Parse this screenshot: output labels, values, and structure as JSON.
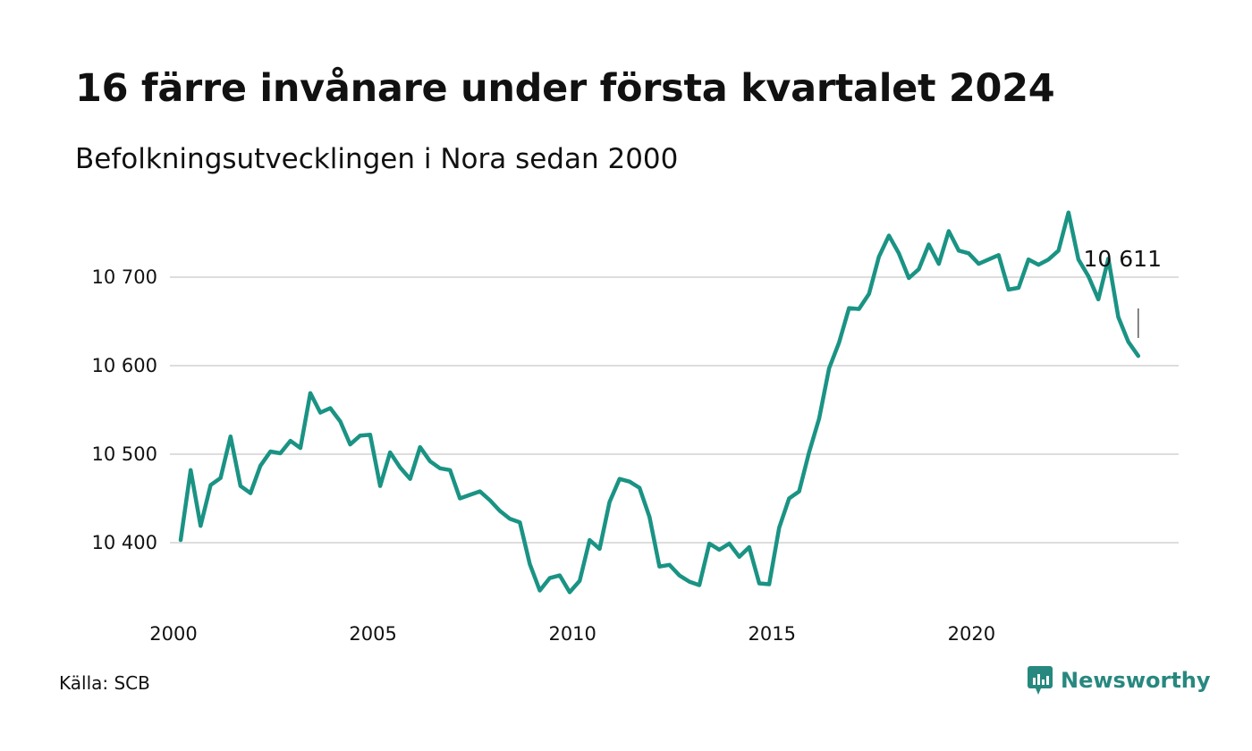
{
  "title": "16 färre invånare under första kvartalet 2024",
  "subtitle": "Befolkningsutvecklingen i Nora sedan 2000",
  "source": "Källa: SCB",
  "brand": {
    "name": "Newsworthy",
    "icon": "newsworthy-logo-icon",
    "color": "#27887f"
  },
  "colors": {
    "line": "#1a9384",
    "grid": "#dddddd"
  },
  "chart_data": {
    "type": "line",
    "title": "16 färre invånare under första kvartalet 2024",
    "subtitle": "Befolkningsutvecklingen i Nora sedan 2000",
    "xlabel": "",
    "ylabel": "",
    "xlim": [
      2000.0,
      2024.25
    ],
    "ylim": [
      10330,
      10780
    ],
    "grid": "horizontal",
    "x_ticks": [
      2000,
      2005,
      2010,
      2015,
      2020
    ],
    "y_ticks": [
      10400,
      10500,
      10600,
      10700
    ],
    "y_tick_labels": [
      "10 400",
      "10 500",
      "10 600",
      "10 700"
    ],
    "x_tick_labels": [
      "2000",
      "2005",
      "2010",
      "2015",
      "2020"
    ],
    "end_label": "10 611",
    "series": [
      {
        "x": [
          2000.0,
          2000.25,
          2000.5,
          2000.75,
          2001.0,
          2001.25,
          2001.5,
          2001.75,
          2002.0,
          2002.25,
          2002.5,
          2002.75,
          2003.0,
          2003.25,
          2003.5,
          2003.75,
          2004.0,
          2004.25,
          2004.5,
          2004.75,
          2005.0,
          2005.25,
          2005.5,
          2005.75,
          2006.0,
          2006.25,
          2006.5,
          2006.75,
          2007.0,
          2007.25,
          2007.5,
          2007.75,
          2008.0,
          2008.25,
          2008.5,
          2008.75,
          2009.0,
          2009.25,
          2009.5,
          2009.75,
          2010.0,
          2010.25,
          2010.5,
          2010.75,
          2011.0,
          2011.25,
          2011.5,
          2011.75,
          2012.0,
          2012.25,
          2012.5,
          2012.75,
          2013.0,
          2013.25,
          2013.5,
          2013.75,
          2014.0,
          2014.25,
          2014.5,
          2014.75,
          2015.0,
          2015.25,
          2015.5,
          2015.75,
          2016.0,
          2016.25,
          2016.5,
          2016.75,
          2017.0,
          2017.25,
          2017.5,
          2017.75,
          2018.0,
          2018.25,
          2018.5,
          2018.75,
          2019.0,
          2019.25,
          2019.5,
          2019.75,
          2020.0,
          2020.25,
          2020.5,
          2020.75,
          2021.0,
          2021.25,
          2021.5,
          2021.75,
          2022.0,
          2022.25,
          2022.5,
          2022.75,
          2023.0,
          2023.25,
          2023.5,
          2023.75,
          2024.0
        ],
        "values": [
          10403,
          10482,
          10419,
          10465,
          10473,
          10520,
          10464,
          10456,
          10487,
          10503,
          10501,
          10515,
          10507,
          10569,
          10547,
          10552,
          10537,
          10511,
          10521,
          10522,
          10464,
          10502,
          10485,
          10472,
          10508,
          10492,
          10484,
          10482,
          10450,
          10454,
          10458,
          10448,
          10436,
          10427,
          10423,
          10376,
          10346,
          10360,
          10363,
          10344,
          10357,
          10403,
          10393,
          10446,
          10472,
          10469,
          10462,
          10429,
          10373,
          10375,
          10363,
          10356,
          10352,
          10399,
          10392,
          10399,
          10384,
          10395,
          10354,
          10353,
          10417,
          10450,
          10458,
          10502,
          10540,
          10597,
          10626,
          10665,
          10664,
          10681,
          10723,
          10747,
          10727,
          10699,
          10709,
          10737,
          10715,
          10752,
          10730,
          10727,
          10715,
          10720,
          10725,
          10686,
          10688,
          10720,
          10714,
          10720,
          10730,
          10773,
          10720,
          10701,
          10675,
          10721,
          10655,
          10627,
          10611
        ]
      }
    ]
  }
}
